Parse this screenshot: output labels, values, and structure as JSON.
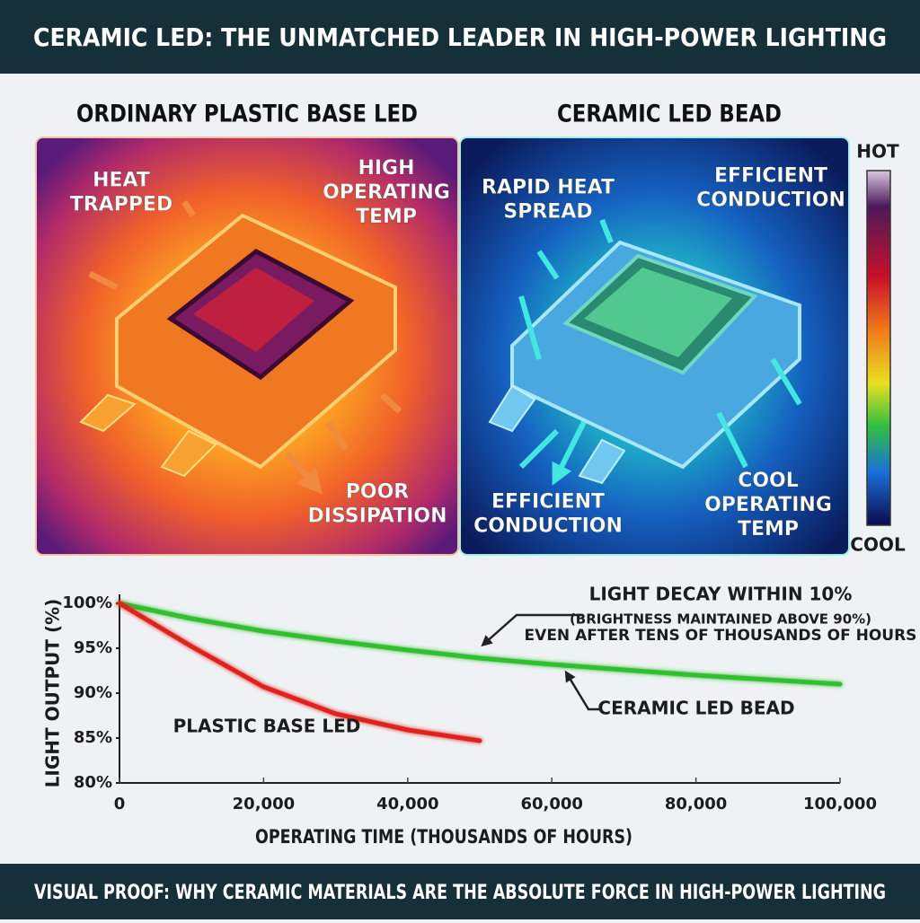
{
  "title": "CERAMIC LED: THE UNMATCHED LEADER IN HIGH-POWER LIGHTING",
  "panels": [
    {
      "heading": "ORDINARY PLASTIC BASE LED",
      "labels": [
        [
          "HEAT",
          "TRAPPED"
        ],
        [
          "HIGH",
          "OPERATING",
          "TEMP"
        ],
        [
          "POOR",
          "DISSIPATION"
        ]
      ]
    },
    {
      "heading": "CERAMIC LED BEAD",
      "labels": [
        [
          "RAPID HEAT",
          "SPREAD"
        ],
        [
          "EFFICIENT",
          "CONDUCTION"
        ],
        [
          "EFFICIENT",
          "CONDUCTION"
        ],
        [
          "COOL",
          "OPERATING",
          "TEMP"
        ]
      ]
    }
  ],
  "colorbar": {
    "top": "HOT",
    "bottom": "COOL"
  },
  "chart_data": {
    "type": "line",
    "x_label": "OPERATING TIME (THOUSANDS OF HOURS)",
    "y_label": "LIGHT OUTPUT (%)",
    "x": [
      0,
      10000,
      20000,
      30000,
      40000,
      50000,
      60000,
      70000,
      80000,
      90000,
      100000
    ],
    "series": [
      {
        "name": "CERAMIC LED BEAD",
        "color": "#2fc02f",
        "values": [
          100,
          98.3,
          96.9,
          95.8,
          94.8,
          93.9,
          93.2,
          92.6,
          92.0,
          91.5,
          91.0
        ]
      },
      {
        "name": "PLASTIC BASE LED",
        "color": "#e0221a",
        "values": [
          100,
          95.2,
          90.7,
          87.7,
          85.9,
          84.7,
          null,
          null,
          null,
          null,
          null
        ]
      }
    ],
    "xlim": [
      0,
      100000
    ],
    "xticks": [
      0,
      {
        "value": 20000,
        "label": "20,000"
      },
      {
        "value": 40000,
        "label": "40,000"
      },
      {
        "value": 60000,
        "label": "60,000"
      },
      {
        "value": 80000,
        "label": "80,000"
      },
      {
        "value": 100000,
        "label": "100,000"
      }
    ],
    "ylim": [
      80,
      100
    ],
    "yticks": [
      {
        "value": 80,
        "label": "80%"
      },
      {
        "value": 85,
        "label": "85%"
      },
      {
        "value": 90,
        "label": "90%"
      },
      {
        "value": 95,
        "label": "95%"
      },
      {
        "value": 100,
        "label": "100%"
      }
    ],
    "annotations": [
      "LIGHT DECAY WITHIN 10%",
      "(BRIGHTNESS MAINTAINED ABOVE 90%)",
      "EVEN AFTER TENS OF THOUSANDS OF HOURS"
    ]
  },
  "footer": "VISUAL PROOF: WHY CERAMIC MATERIALS ARE THE ABSOLUTE FORCE IN HIGH-POWER LIGHTING"
}
